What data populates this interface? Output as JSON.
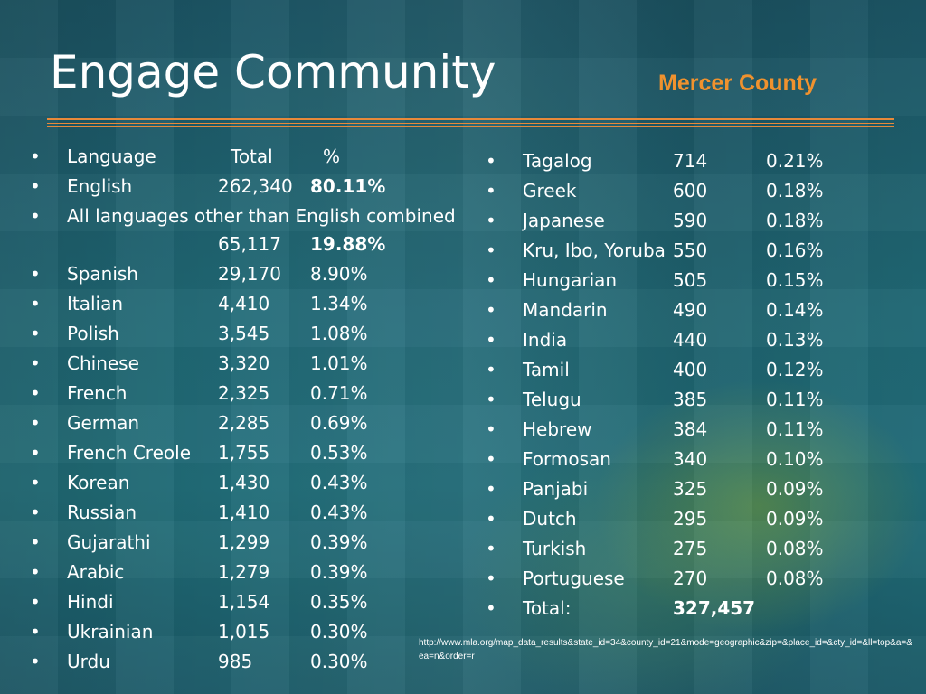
{
  "slide": {
    "title": "Engage Community",
    "subtitle": "Mercer County",
    "accent_color": "#e8893a",
    "subtitle_color": "#f0922e"
  },
  "left_column": {
    "header": {
      "language": "Language",
      "total": "Total",
      "percent": "%"
    },
    "rows": [
      {
        "language": "English",
        "total": "262,340",
        "percent": "80.11%"
      },
      {
        "language": "All languages other than English combined",
        "total": "65,117",
        "percent": "19.88%"
      },
      {
        "language": "Spanish",
        "total": "29,170",
        "percent": "8.90%"
      },
      {
        "language": "Italian",
        "total": "4,410",
        "percent": "1.34%"
      },
      {
        "language": "Polish",
        "total": "3,545",
        "percent": "1.08%"
      },
      {
        "language": "Chinese",
        "total": "3,320",
        "percent": "1.01%"
      },
      {
        "language": "French",
        "total": "2,325",
        "percent": "0.71%"
      },
      {
        "language": "German",
        "total": "2,285",
        "percent": "0.69%"
      },
      {
        "language": "French Creole",
        "total": "1,755",
        "percent": "0.53%"
      },
      {
        "language": "Korean",
        "total": "1,430",
        "percent": "0.43%"
      },
      {
        "language": "Russian",
        "total": "1,410",
        "percent": "0.43%"
      },
      {
        "language": "Gujarathi",
        "total": "1,299",
        "percent": "0.39%"
      },
      {
        "language": "Arabic",
        "total": "1,279",
        "percent": "0.39%"
      },
      {
        "language": "Hindi",
        "total": "1,154",
        "percent": "0.35%"
      },
      {
        "language": "Ukrainian",
        "total": "1,015",
        "percent": "0.30%"
      },
      {
        "language": "Urdu",
        "total": "985",
        "percent": "0.30%"
      }
    ]
  },
  "right_column": {
    "rows": [
      {
        "language": "Tagalog",
        "total": "714",
        "percent": "0.21%"
      },
      {
        "language": "Greek",
        "total": "600",
        "percent": "0.18%"
      },
      {
        "language": "Japanese",
        "total": "590",
        "percent": "0.18%"
      },
      {
        "language": "Kru, Ibo, Yoruba",
        "total": "550",
        "percent": "0.16%"
      },
      {
        "language": "Hungarian",
        "total": "505",
        "percent": "0.15%"
      },
      {
        "language": "Mandarin",
        "total": "490",
        "percent": "0.14%"
      },
      {
        "language": "India",
        "total": "440",
        "percent": "0.13%"
      },
      {
        "language": "Tamil",
        "total": "400",
        "percent": "0.12%"
      },
      {
        "language": "Telugu",
        "total": "385",
        "percent": "0.11%"
      },
      {
        "language": "Hebrew",
        "total": "384",
        "percent": "0.11%"
      },
      {
        "language": "Formosan",
        "total": "340",
        "percent": "0.10%"
      },
      {
        "language": "Panjabi",
        "total": "325",
        "percent": "0.09%"
      },
      {
        "language": "Dutch",
        "total": "295",
        "percent": "0.09%"
      },
      {
        "language": "Turkish",
        "total": "275",
        "percent": "0.08%"
      },
      {
        "language": "Portuguese",
        "total": "270",
        "percent": "0.08%"
      }
    ],
    "total": {
      "label": "Total:",
      "value": "327,457"
    }
  },
  "source": {
    "url": "http://www.mla.org/map_data_results&state_id=34&county_id=21&mode=geographic&zip=&place_id=&cty_id=&ll=top&a=&ea=n&order=r"
  },
  "bullet_glyph": "•"
}
